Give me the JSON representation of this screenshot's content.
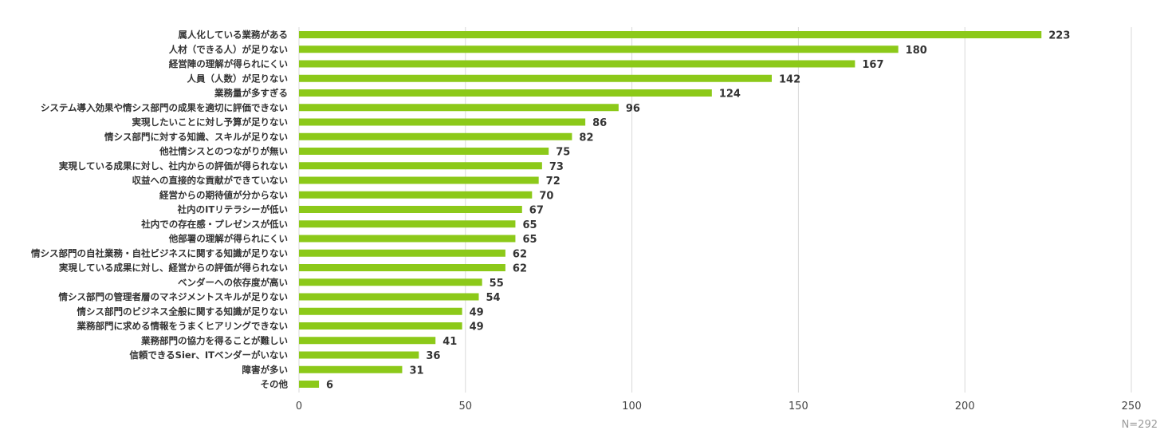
{
  "chart_data": {
    "type": "bar",
    "orientation": "horizontal",
    "categories": [
      "属人化している業務がある",
      "人材（できる人）が足りない",
      "経営陣の理解が得られにくい",
      "人員（人数）が足りない",
      "業務量が多すぎる",
      "システム導入効果や情シス部門の成果を適切に評価できない",
      "実現したいことに対し予算が足りない",
      "情シス部門に対する知識、スキルが足りない",
      "他社情シスとのつながりが無い",
      "実現している成果に対し、社内からの評価が得られない",
      "収益への直接的な貢献ができていない",
      "経営からの期待値が分からない",
      "社内のITリテラシーが低い",
      "社内での存在感・プレゼンスが低い",
      "他部署の理解が得られにくい",
      "情シス部門の自社業務・自社ビジネスに関する知識が足りない",
      "実現している成果に対し、経営からの評価が得られない",
      "ベンダーへの依存度が高い",
      "情シス部門の管理者層のマネジメントスキルが足りない",
      "情シス部門のビジネス全般に関する知識が足りない",
      "業務部門に求める情報をうまくヒアリングできない",
      "業務部門の協力を得ることが難しい",
      "信頼できるSier、ITベンダーがいない",
      "障害が多い",
      "その他"
    ],
    "values": [
      223,
      180,
      167,
      142,
      124,
      96,
      86,
      82,
      75,
      73,
      72,
      70,
      67,
      65,
      65,
      62,
      62,
      55,
      54,
      49,
      49,
      41,
      36,
      31,
      6
    ],
    "xlim": [
      0,
      250
    ],
    "xticks": [
      "0",
      "50",
      "100",
      "150",
      "200",
      "250"
    ],
    "grid": true,
    "bar_color": "#8cc919",
    "grid_color": "#d9d9d9",
    "note": "N=292"
  }
}
